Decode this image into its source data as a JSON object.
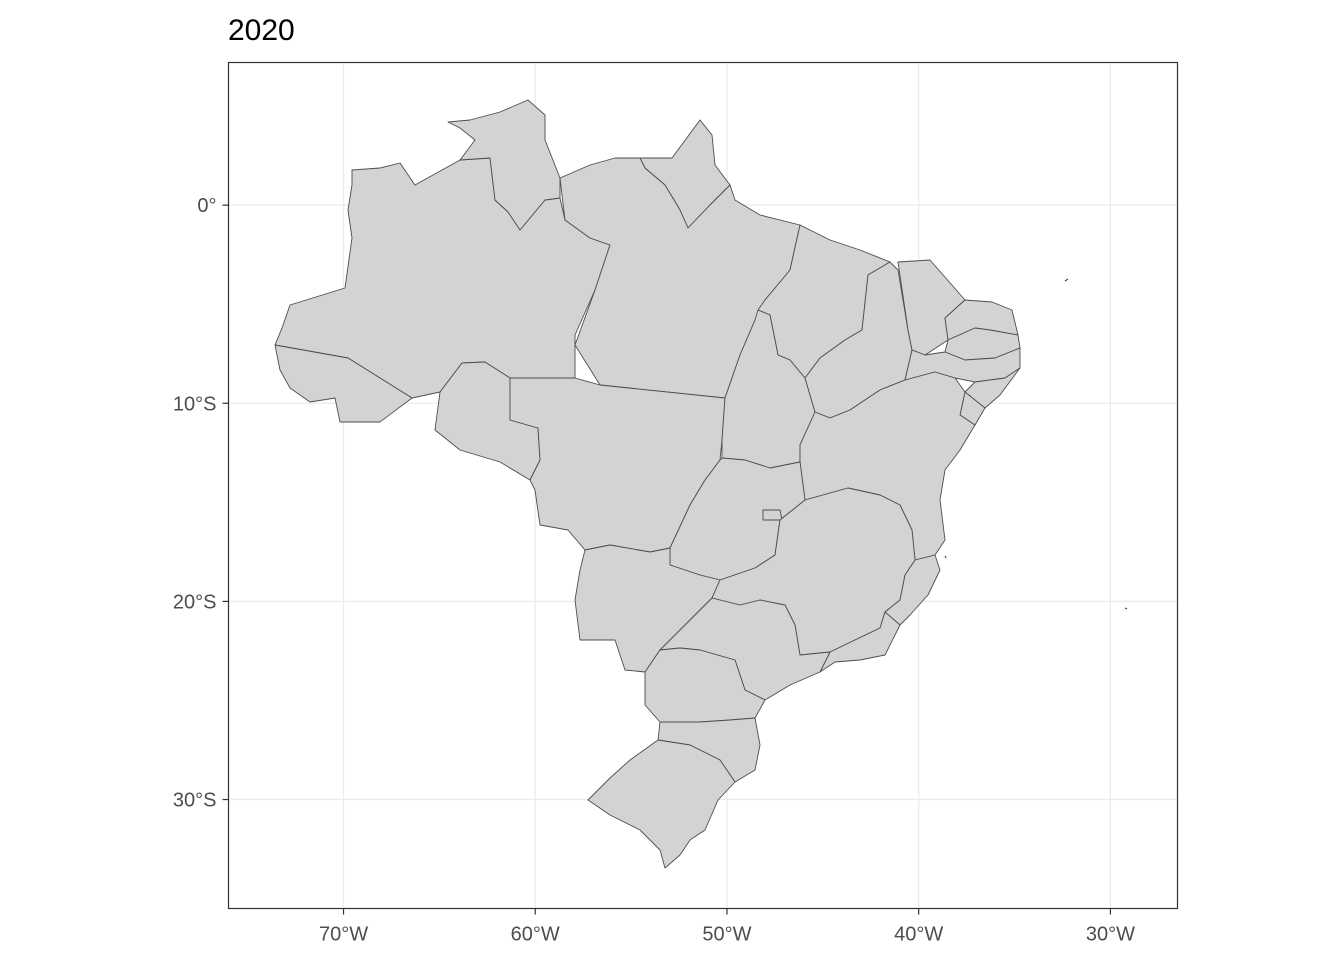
{
  "title": "2020",
  "colors": {
    "state_fill": "#d3d3d3",
    "state_stroke": "#4d4d4d",
    "gridline": "#ebebeb",
    "panel_border": "#333333",
    "tick_text": "#4d4d4d"
  },
  "map": {
    "region": "Brazil",
    "features": "state boundaries",
    "xlim": [
      -76,
      -26.5
    ],
    "ylim": [
      -35.5,
      7.2
    ],
    "x_ticks": [
      {
        "value": -70,
        "label": "70°W"
      },
      {
        "value": -60,
        "label": "60°W"
      },
      {
        "value": -50,
        "label": "50°W"
      },
      {
        "value": -40,
        "label": "40°W"
      },
      {
        "value": -30,
        "label": "30°W"
      }
    ],
    "y_ticks": [
      {
        "value": 0,
        "label": "0°"
      },
      {
        "value": -10,
        "label": "10°S"
      },
      {
        "value": -20,
        "label": "20°S"
      },
      {
        "value": -30,
        "label": "30°S"
      }
    ],
    "grid": true
  }
}
